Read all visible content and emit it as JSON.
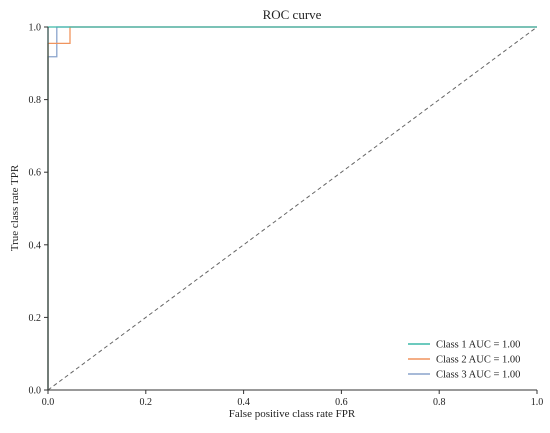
{
  "chart_data": {
    "type": "line",
    "title": "ROC curve",
    "xlabel": "False positive class rate FPR",
    "ylabel": "True class rate TPR",
    "xlim": [
      0,
      1
    ],
    "ylim": [
      0,
      1
    ],
    "x_ticks": [
      0,
      0.2,
      0.4,
      0.6,
      0.8,
      1
    ],
    "y_ticks": [
      0,
      0.2,
      0.4,
      0.6,
      0.8,
      1
    ],
    "x_tick_labels": [
      "0.0",
      "0.2",
      "0.4",
      "0.6",
      "0.8",
      "1.0"
    ],
    "y_tick_labels": [
      "0.0",
      "0.2",
      "0.4",
      "0.6",
      "0.8",
      "1.0"
    ],
    "grid": false,
    "legend_position": "bottom-right",
    "series": [
      {
        "name": "Class 1 AUC = 1.00",
        "color": "#3cb9a8",
        "points": [
          [
            0,
            0
          ],
          [
            0,
            1
          ],
          [
            1,
            1
          ]
        ]
      },
      {
        "name": "Class 2 AUC = 1.00",
        "color": "#f0945e",
        "points": [
          [
            0,
            0
          ],
          [
            0,
            0.955
          ],
          [
            0.045,
            0.955
          ],
          [
            0.045,
            1
          ],
          [
            1,
            1
          ]
        ]
      },
      {
        "name": "Class 3 AUC = 1.00",
        "color": "#8aa4cc",
        "points": [
          [
            0,
            0
          ],
          [
            0,
            0.918
          ],
          [
            0.018,
            0.918
          ],
          [
            0.018,
            1
          ],
          [
            1,
            1
          ]
        ]
      }
    ],
    "reference_line": {
      "color": "#666666",
      "points": [
        [
          0,
          0
        ],
        [
          1,
          1
        ]
      ]
    }
  }
}
